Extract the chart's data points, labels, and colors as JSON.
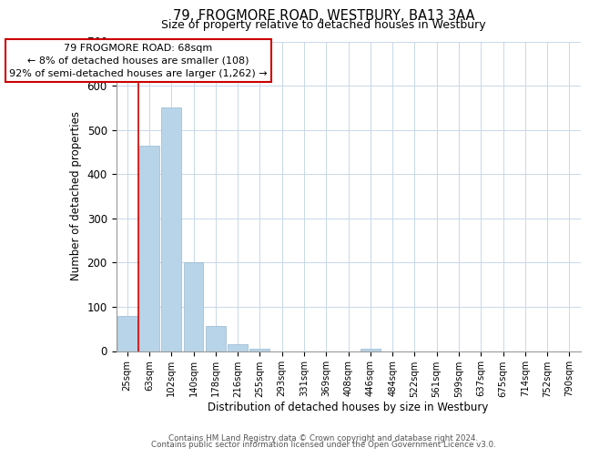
{
  "title": "79, FROGMORE ROAD, WESTBURY, BA13 3AA",
  "subtitle": "Size of property relative to detached houses in Westbury",
  "xlabel": "Distribution of detached houses by size in Westbury",
  "ylabel": "Number of detached properties",
  "bar_labels": [
    "25sqm",
    "63sqm",
    "102sqm",
    "140sqm",
    "178sqm",
    "216sqm",
    "255sqm",
    "293sqm",
    "331sqm",
    "369sqm",
    "408sqm",
    "446sqm",
    "484sqm",
    "522sqm",
    "561sqm",
    "599sqm",
    "637sqm",
    "675sqm",
    "714sqm",
    "752sqm",
    "790sqm"
  ],
  "bar_heights": [
    80,
    465,
    550,
    200,
    57,
    15,
    5,
    0,
    0,
    0,
    0,
    5,
    0,
    0,
    0,
    0,
    0,
    0,
    0,
    0,
    0
  ],
  "bar_color": "#b8d4e8",
  "bar_edge_color": "#9ab8d0",
  "property_line_x": 0.5,
  "property_line_color": "#cc0000",
  "ylim": [
    0,
    700
  ],
  "yticks": [
    0,
    100,
    200,
    300,
    400,
    500,
    600,
    700
  ],
  "annotation_line1": "79 FROGMORE ROAD: 68sqm",
  "annotation_line2": "← 8% of detached houses are smaller (108)",
  "annotation_line3": "92% of semi-detached houses are larger (1,262) →",
  "footer_line1": "Contains HM Land Registry data © Crown copyright and database right 2024.",
  "footer_line2": "Contains public sector information licensed under the Open Government Licence v3.0.",
  "background_color": "#ffffff",
  "grid_color": "#c8d8e8"
}
